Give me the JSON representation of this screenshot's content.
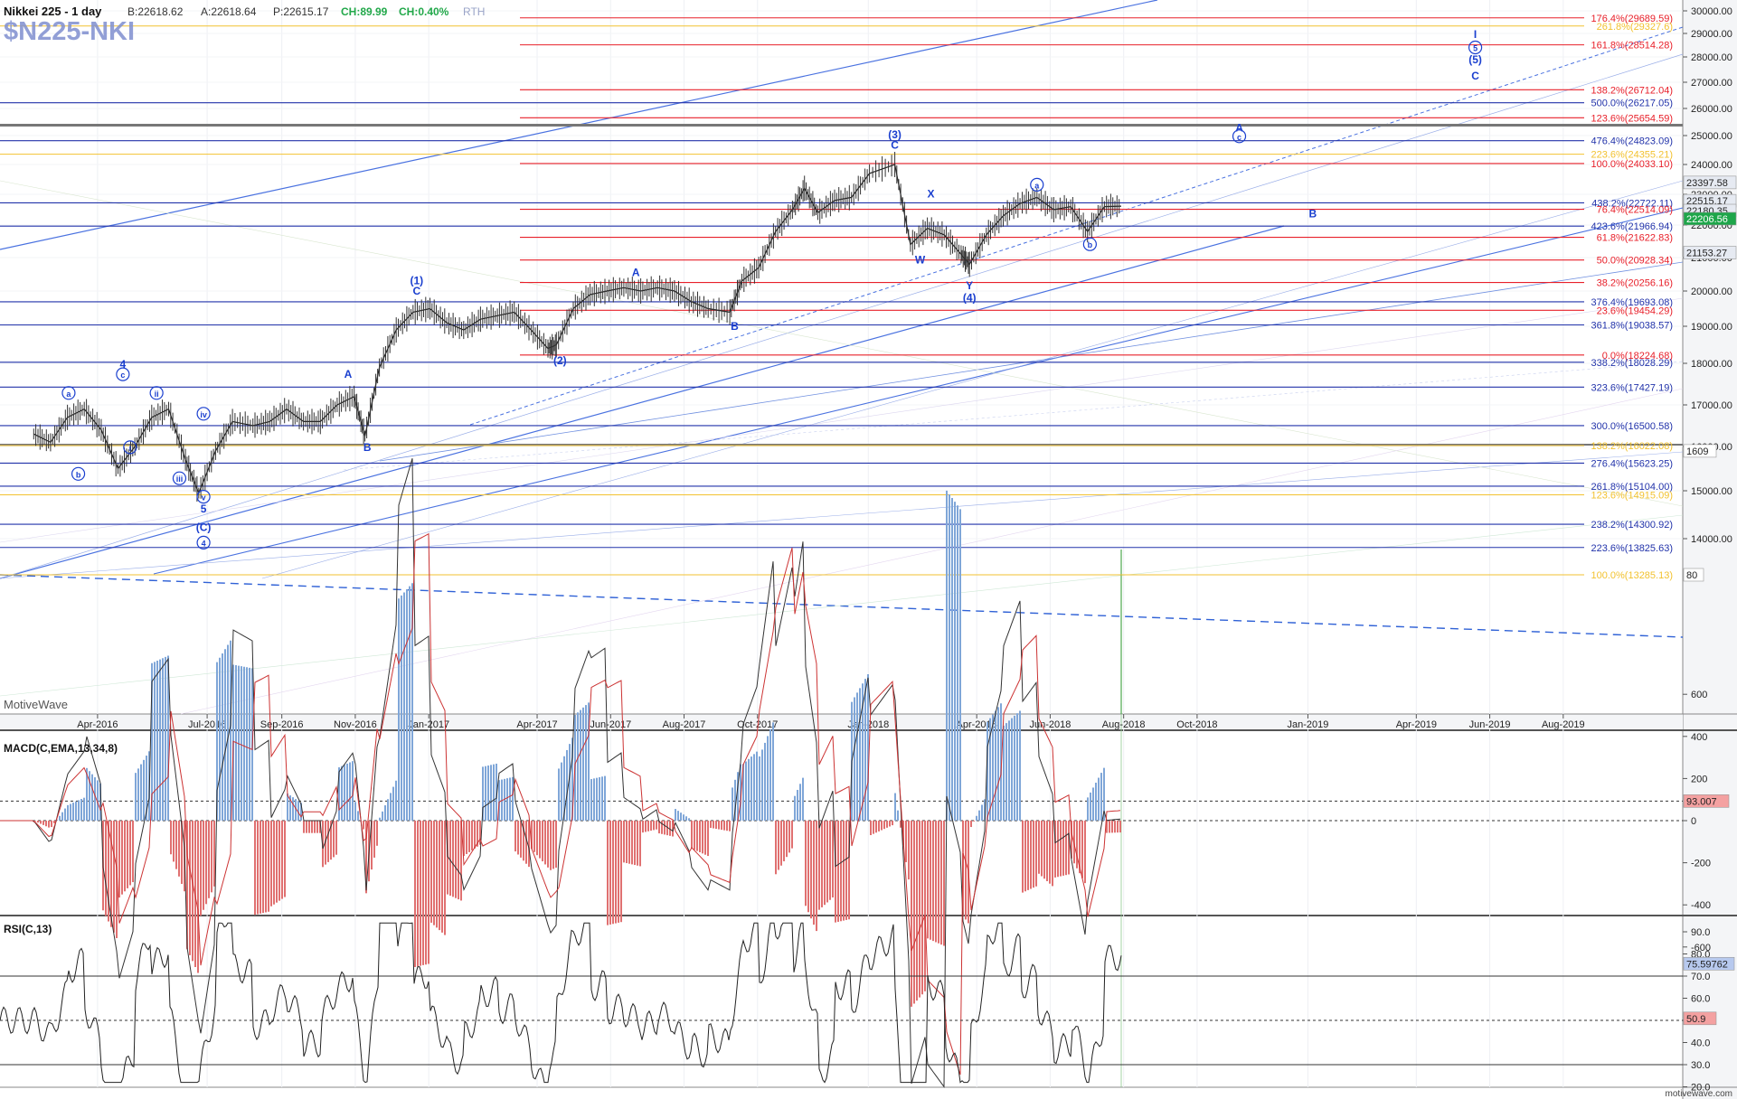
{
  "header": {
    "symbol": "$N225-NKI",
    "title": "Nikkei 225 - 1 day",
    "bid": "B:22618.62",
    "ask": "A:22618.64",
    "price": "P:22615.17",
    "change": "CH:89.99",
    "change_pct": "CH:0.40%",
    "session": "RTH",
    "watermark": "MotiveWave",
    "footer": "motivewave.com"
  },
  "colors": {
    "fib_red": "#e8202a",
    "fib_orange": "#f2c230",
    "fib_blue": "#2233aa",
    "label_blue": "#1a3fcf",
    "up_green": "#22a84a",
    "price_badge_green": "#1ea64a",
    "price_badge_gray": "#e6eaf2",
    "rsi_badge_red": "#f4a1a1",
    "rsi_badge_blue": "#b7c9ee"
  },
  "chart_data": [
    {
      "type": "line",
      "name": "price",
      "x": [
        "2016-02-08",
        "2016-02-22",
        "2016-03-07",
        "2016-03-21",
        "2016-04-04",
        "2016-04-18",
        "2016-05-02",
        "2016-05-16",
        "2016-05-30",
        "2016-06-13",
        "2016-06-24",
        "2016-07-08",
        "2016-07-22",
        "2016-08-08",
        "2016-08-22",
        "2016-09-05",
        "2016-09-19",
        "2016-10-03",
        "2016-10-17",
        "2016-10-31",
        "2016-11-09",
        "2016-11-21",
        "2016-12-05",
        "2016-12-19",
        "2017-01-02",
        "2017-01-16",
        "2017-01-30",
        "2017-02-13",
        "2017-02-27",
        "2017-03-13",
        "2017-03-27",
        "2017-04-10",
        "2017-04-17",
        "2017-05-01",
        "2017-05-15",
        "2017-05-29",
        "2017-06-12",
        "2017-06-26",
        "2017-07-10",
        "2017-07-24",
        "2017-08-07",
        "2017-08-21",
        "2017-09-08",
        "2017-09-18",
        "2017-10-02",
        "2017-10-16",
        "2017-10-30",
        "2017-11-09",
        "2017-11-20",
        "2017-12-04",
        "2017-12-18",
        "2018-01-02",
        "2018-01-23",
        "2018-02-05",
        "2018-02-19",
        "2018-03-05",
        "2018-03-19",
        "2018-03-26",
        "2018-04-09",
        "2018-04-23",
        "2018-05-07",
        "2018-05-21",
        "2018-06-04",
        "2018-06-18",
        "2018-07-02",
        "2018-07-16",
        "2018-07-30"
      ],
      "values": [
        16300,
        16100,
        16700,
        16900,
        16400,
        15500,
        16000,
        16700,
        16900,
        15700,
        14950,
        15900,
        16600,
        16500,
        16600,
        16900,
        16600,
        16600,
        17000,
        17200,
        16250,
        17900,
        18900,
        19400,
        19500,
        19100,
        18900,
        19200,
        19300,
        19400,
        18900,
        18400,
        18500,
        19500,
        19900,
        20000,
        20100,
        20000,
        20100,
        20000,
        19700,
        19500,
        19400,
        20300,
        20700,
        21800,
        22500,
        23200,
        22400,
        22800,
        22900,
        23700,
        24000,
        21400,
        21900,
        21700,
        21100,
        20800,
        21700,
        22300,
        22700,
        22900,
        22500,
        22600,
        21800,
        22600,
        22615
      ]
    },
    {
      "type": "line",
      "name": "MACD(C,EMA,13,34,8)",
      "y_ticks": [
        600,
        400,
        200,
        0,
        -200,
        -400,
        -600
      ],
      "current": "93.007"
    },
    {
      "type": "line",
      "name": "RSI(C,13)",
      "y_ticks": [
        90,
        80,
        70,
        60,
        50,
        40,
        30,
        20
      ],
      "current": "50.9",
      "upper_band_value": "75.59762"
    }
  ],
  "price_axis": {
    "ticks": [
      30000,
      29000,
      28000,
      27000,
      26000,
      25000,
      24000,
      23000,
      22000,
      21000,
      20000,
      19000,
      18000,
      17000,
      16000,
      15000,
      14000
    ],
    "tick_labels": [
      "30000.00",
      "29000.00",
      "28000.00",
      "27000.00",
      "26000.00",
      "25000.00",
      "24000.00",
      "23000.00",
      "22000.00",
      "21000.00",
      "20000.00",
      "19000.00",
      "18000.00",
      "17000.00",
      "16000.00",
      "15000.00",
      "14000.00"
    ],
    "badges": [
      {
        "text": "23397.58",
        "price": 23397.58,
        "style": "gray"
      },
      {
        "text": "22515.17",
        "price": 22790,
        "style": "gray"
      },
      {
        "text": "22180.35",
        "price": 22470,
        "style": "gray"
      },
      {
        "text": "22206.56",
        "price": 22206.56,
        "style": "green"
      },
      {
        "text": "21153.27",
        "price": 21153.27,
        "style": "gray"
      },
      {
        "text": "1609",
        "price": 15900,
        "style": "white"
      },
      {
        "text": "80",
        "price": 13285,
        "style": "white"
      }
    ]
  },
  "time_axis": {
    "labels": [
      {
        "text": "Apr-2016",
        "date": "2016-04-01"
      },
      {
        "text": "Jul-2016",
        "date": "2016-07-01"
      },
      {
        "text": "Sep-2016",
        "date": "2016-09-01"
      },
      {
        "text": "Nov-2016",
        "date": "2016-11-01"
      },
      {
        "text": "Jan-2017",
        "date": "2017-01-01"
      },
      {
        "text": "Apr-2017",
        "date": "2017-04-01"
      },
      {
        "text": "Jun-2017",
        "date": "2017-06-01"
      },
      {
        "text": "Aug-2017",
        "date": "2017-08-01"
      },
      {
        "text": "Oct-2017",
        "date": "2017-10-01"
      },
      {
        "text": "Jan-2018",
        "date": "2018-01-01"
      },
      {
        "text": "Apr-2018",
        "date": "2018-04-01"
      },
      {
        "text": "Jun-2018",
        "date": "2018-06-01"
      },
      {
        "text": "Aug-2018",
        "date": "2018-08-01"
      },
      {
        "text": "Oct-2018",
        "date": "2018-10-01"
      },
      {
        "text": "Jan-2019",
        "date": "2019-01-01"
      },
      {
        "text": "Apr-2019",
        "date": "2019-04-01"
      },
      {
        "text": "Jun-2019",
        "date": "2019-06-01"
      },
      {
        "text": "Aug-2019",
        "date": "2019-08-01"
      }
    ]
  },
  "fib_levels": [
    {
      "text": "176.4%(29689.59)",
      "price": 29689.59,
      "group": "red"
    },
    {
      "text": "261.8%(29327.6)",
      "price": 29327.6,
      "group": "orange"
    },
    {
      "text": "161.8%(28514.28)",
      "price": 28514.28,
      "group": "red"
    },
    {
      "text": "138.2%(26712.04)",
      "price": 26712.04,
      "group": "red"
    },
    {
      "text": "500.0%(26217.05)",
      "price": 26217.05,
      "group": "blue"
    },
    {
      "text": "123.6%(25654.59)",
      "price": 25654.59,
      "group": "red"
    },
    {
      "text": "476.4%(24823.09)",
      "price": 24823.09,
      "group": "blue"
    },
    {
      "text": "223.6%(24355.21)",
      "price": 24355.21,
      "group": "orange"
    },
    {
      "text": "100.0%(24033.10)",
      "price": 24033.1,
      "group": "red"
    },
    {
      "text": "438.2%(22722.11)",
      "price": 22722.11,
      "group": "blue"
    },
    {
      "text": "76.4%(22514.09)",
      "price": 22514.09,
      "group": "red"
    },
    {
      "text": "423.6%(21966.94)",
      "price": 21966.94,
      "group": "blue"
    },
    {
      "text": "61.8%(21622.83)",
      "price": 21622.83,
      "group": "red"
    },
    {
      "text": "50.0%(20928.34)",
      "price": 20928.34,
      "group": "red"
    },
    {
      "text": "38.2%(20256.16)",
      "price": 20256.16,
      "group": "red"
    },
    {
      "text": "376.4%(19693.08)",
      "price": 19693.08,
      "group": "blue"
    },
    {
      "text": "23.6%(19454.29)",
      "price": 19454.29,
      "group": "red"
    },
    {
      "text": "361.8%(19038.57)",
      "price": 19038.57,
      "group": "blue"
    },
    {
      "text": "0.0%(18224.68)",
      "price": 18224.68,
      "group": "red"
    },
    {
      "text": "338.2%(18028.29)",
      "price": 18028.29,
      "group": "blue"
    },
    {
      "text": "323.6%(17427.19)",
      "price": 17427.19,
      "group": "blue"
    },
    {
      "text": "300.0%(16500.58)",
      "price": 16500.58,
      "group": "blue"
    },
    {
      "text": "138.2%(16022.08)",
      "price": 16022.08,
      "group": "orange"
    },
    {
      "text": "276.4%(15623.25)",
      "price": 15623.25,
      "group": "blue"
    },
    {
      "text": "261.8%(15104.00)",
      "price": 15104.0,
      "group": "blue"
    },
    {
      "text": "123.6%(14915.09)",
      "price": 14915.09,
      "group": "orange"
    },
    {
      "text": "238.2%(14300.92)",
      "price": 14300.92,
      "group": "blue"
    },
    {
      "text": "223.6%(13825.63)",
      "price": 13825.63,
      "group": "blue"
    },
    {
      "text": "100.0%(13285.13)",
      "price": 13285.13,
      "group": "orange"
    }
  ],
  "wave_labels": [
    {
      "text": "a",
      "date": "2016-03-08",
      "price": 17200,
      "circle": true
    },
    {
      "text": "4",
      "date": "2016-04-22",
      "price": 17890,
      "circle": false
    },
    {
      "text": "c",
      "date": "2016-04-22",
      "price": 17650,
      "circle": true
    },
    {
      "text": "b",
      "date": "2016-03-16",
      "price": 15300,
      "circle": true
    },
    {
      "text": "ii",
      "date": "2016-05-20",
      "price": 17200,
      "circle": true
    },
    {
      "text": "i",
      "date": "2016-04-28",
      "price": 15900,
      "circle": true
    },
    {
      "text": "iv",
      "date": "2016-06-28",
      "price": 16700,
      "circle": true
    },
    {
      "text": "iii",
      "date": "2016-06-08",
      "price": 15200,
      "circle": true
    },
    {
      "text": "v",
      "date": "2016-06-28",
      "price": 14800,
      "circle": true
    },
    {
      "text": "5",
      "date": "2016-06-28",
      "price": 14550,
      "circle": false
    },
    {
      "text": "(C)",
      "date": "2016-06-28",
      "price": 14160,
      "circle": false
    },
    {
      "text": "4",
      "date": "2016-06-28",
      "price": 13850,
      "circle": true
    },
    {
      "text": "A",
      "date": "2016-10-26",
      "price": 17650,
      "circle": false
    },
    {
      "text": "B",
      "date": "2016-11-11",
      "price": 15900,
      "circle": false
    },
    {
      "text": "(1)",
      "date": "2016-12-22",
      "price": 20200,
      "circle": false
    },
    {
      "text": "C",
      "date": "2016-12-22",
      "price": 19900,
      "circle": false
    },
    {
      "text": "(2)",
      "date": "2017-04-20",
      "price": 17980,
      "circle": false
    },
    {
      "text": "A",
      "date": "2017-06-22",
      "price": 20450,
      "circle": false
    },
    {
      "text": "B",
      "date": "2017-09-12",
      "price": 18900,
      "circle": false
    },
    {
      "text": "(3)",
      "date": "2018-01-23",
      "price": 24900,
      "circle": false
    },
    {
      "text": "C",
      "date": "2018-01-23",
      "price": 24550,
      "circle": false
    },
    {
      "text": "X",
      "date": "2018-02-22",
      "price": 22900,
      "circle": false
    },
    {
      "text": "W",
      "date": "2018-02-13",
      "price": 20830,
      "circle": false
    },
    {
      "text": "Y",
      "date": "2018-03-26",
      "price": 20050,
      "circle": false
    },
    {
      "text": "(4)",
      "date": "2018-03-26",
      "price": 19700,
      "circle": false
    },
    {
      "text": "a",
      "date": "2018-05-21",
      "price": 23200,
      "circle": true
    },
    {
      "text": "b",
      "date": "2018-07-04",
      "price": 21300,
      "circle": true
    },
    {
      "text": "A",
      "date": "2018-11-05",
      "price": 25150,
      "circle": false
    },
    {
      "text": "c",
      "date": "2018-11-05",
      "price": 24850,
      "circle": true
    },
    {
      "text": "B",
      "date": "2019-01-05",
      "price": 22250,
      "circle": false
    },
    {
      "text": "I",
      "date": "2019-05-20",
      "price": 28800,
      "circle": false
    },
    {
      "text": "5",
      "date": "2019-05-20",
      "price": 28250,
      "circle": true
    },
    {
      "text": "(5)",
      "date": "2019-05-20",
      "price": 27750,
      "circle": false
    },
    {
      "text": "C",
      "date": "2019-05-20",
      "price": 27100,
      "circle": false
    }
  ]
}
